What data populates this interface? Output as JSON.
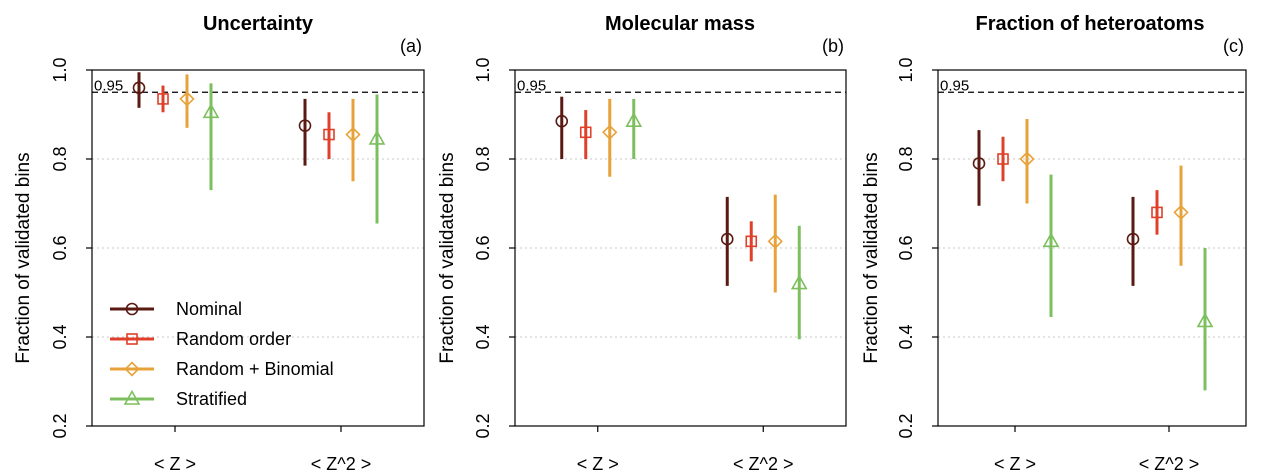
{
  "chart_data": [
    {
      "type": "scatter",
      "title": "Uncertainty",
      "panel_label": "(a)",
      "ylabel": "Fraction of validated bins",
      "ylim": [
        0.2,
        1.0
      ],
      "yticks": [
        "0.2",
        "0.4",
        "0.6",
        "0.8",
        "1.0"
      ],
      "categories": [
        "< Z >",
        "< Z^2 >"
      ],
      "reference_line": {
        "value": 0.95,
        "label": "0.95"
      },
      "grid": "horizontal dotted at 0.4, 0.6, 0.8",
      "series": [
        {
          "name": "Nominal",
          "color": "#5a1a12",
          "marker": "circle",
          "values": [
            0.96,
            0.875
          ],
          "lower": [
            0.915,
            0.785
          ],
          "upper": [
            0.995,
            0.935
          ]
        },
        {
          "name": "Random order",
          "color": "#e0402a",
          "marker": "square",
          "values": [
            0.935,
            0.855
          ],
          "lower": [
            0.905,
            0.8
          ],
          "upper": [
            0.965,
            0.905
          ]
        },
        {
          "name": "Random + Binomial",
          "color": "#e8a23a",
          "marker": "diamond",
          "values": [
            0.935,
            0.855
          ],
          "lower": [
            0.87,
            0.75
          ],
          "upper": [
            0.99,
            0.935
          ]
        },
        {
          "name": "Stratified",
          "color": "#7dbf5e",
          "marker": "triangle",
          "values": [
            0.905,
            0.845
          ],
          "lower": [
            0.73,
            0.655
          ],
          "upper": [
            0.97,
            0.945
          ]
        }
      ],
      "legend": {
        "location": "bottom-left",
        "items": [
          "Nominal",
          "Random order",
          "Random + Binomial",
          "Stratified"
        ]
      }
    },
    {
      "type": "scatter",
      "title": "Molecular mass",
      "panel_label": "(b)",
      "ylabel": "Fraction of validated bins",
      "ylim": [
        0.2,
        1.0
      ],
      "yticks": [
        "0.2",
        "0.4",
        "0.6",
        "0.8",
        "1.0"
      ],
      "categories": [
        "< Z >",
        "< Z^2 >"
      ],
      "reference_line": {
        "value": 0.95,
        "label": "0.95"
      },
      "grid": "horizontal dotted at 0.4, 0.6, 0.8",
      "series": [
        {
          "name": "Nominal",
          "color": "#5a1a12",
          "marker": "circle",
          "values": [
            0.885,
            0.62
          ],
          "lower": [
            0.8,
            0.515
          ],
          "upper": [
            0.94,
            0.715
          ]
        },
        {
          "name": "Random order",
          "color": "#e0402a",
          "marker": "square",
          "values": [
            0.86,
            0.615
          ],
          "lower": [
            0.8,
            0.57
          ],
          "upper": [
            0.91,
            0.66
          ]
        },
        {
          "name": "Random + Binomial",
          "color": "#e8a23a",
          "marker": "diamond",
          "values": [
            0.86,
            0.615
          ],
          "lower": [
            0.76,
            0.5
          ],
          "upper": [
            0.935,
            0.72
          ]
        },
        {
          "name": "Stratified",
          "color": "#7dbf5e",
          "marker": "triangle",
          "values": [
            0.885,
            0.52
          ],
          "lower": [
            0.8,
            0.395
          ],
          "upper": [
            0.935,
            0.65
          ]
        }
      ]
    },
    {
      "type": "scatter",
      "title": "Fraction of heteroatoms",
      "panel_label": "(c)",
      "ylabel": "Fraction of validated bins",
      "ylim": [
        0.2,
        1.0
      ],
      "yticks": [
        "0.2",
        "0.4",
        "0.6",
        "0.8",
        "1.0"
      ],
      "categories": [
        "< Z >",
        "< Z^2 >"
      ],
      "reference_line": {
        "value": 0.95,
        "label": "0.95"
      },
      "grid": "horizontal dotted at 0.4, 0.6, 0.8",
      "series": [
        {
          "name": "Nominal",
          "color": "#5a1a12",
          "marker": "circle",
          "values": [
            0.79,
            0.62
          ],
          "lower": [
            0.695,
            0.515
          ],
          "upper": [
            0.865,
            0.715
          ]
        },
        {
          "name": "Random order",
          "color": "#e0402a",
          "marker": "square",
          "values": [
            0.8,
            0.68
          ],
          "lower": [
            0.75,
            0.63
          ],
          "upper": [
            0.85,
            0.73
          ]
        },
        {
          "name": "Random + Binomial",
          "color": "#e8a23a",
          "marker": "diamond",
          "values": [
            0.8,
            0.68
          ],
          "lower": [
            0.7,
            0.56
          ],
          "upper": [
            0.89,
            0.785
          ]
        },
        {
          "name": "Stratified",
          "color": "#7dbf5e",
          "marker": "triangle",
          "values": [
            0.615,
            0.435
          ],
          "lower": [
            0.445,
            0.28
          ],
          "upper": [
            0.765,
            0.6
          ]
        }
      ]
    }
  ]
}
